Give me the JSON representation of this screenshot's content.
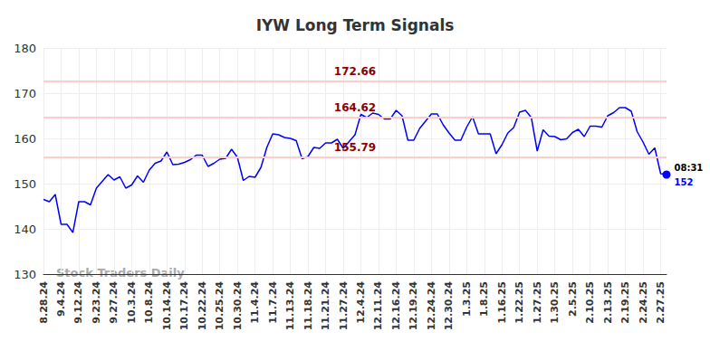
{
  "chart_data": {
    "type": "line",
    "title": "IYW Long Term Signals",
    "color": "#0000ff",
    "grid": true,
    "ylim": [
      130,
      180
    ],
    "yticks": [
      130,
      140,
      150,
      160,
      170,
      180
    ],
    "categories": [
      "8.28.24",
      null,
      null,
      "9.4.24",
      null,
      null,
      "9.12.24",
      null,
      null,
      "9.23.24",
      null,
      null,
      "9.27.24",
      null,
      null,
      "10.3.24",
      null,
      null,
      "10.8.24",
      null,
      null,
      "10.14.24",
      null,
      null,
      "10.17.24",
      null,
      null,
      "10.22.24",
      null,
      null,
      "10.25.24",
      null,
      null,
      "10.30.24",
      null,
      null,
      "11.4.24",
      null,
      null,
      "11.7.24",
      null,
      null,
      "11.13.24",
      null,
      null,
      "11.18.24",
      null,
      null,
      "11.21.24",
      null,
      null,
      "11.27.24",
      null,
      null,
      "12.4.24",
      null,
      null,
      "12.11.24",
      null,
      null,
      "12.16.24",
      null,
      null,
      "12.19.24",
      null,
      null,
      "12.24.24",
      null,
      null,
      "12.30.24",
      null,
      null,
      "1.3.25",
      null,
      null,
      "1.8.25",
      null,
      null,
      "1.16.25",
      null,
      null,
      "1.22.25",
      null,
      null,
      "1.27.25",
      null,
      null,
      "1.30.25",
      null,
      null,
      "2.5.25",
      null,
      null,
      "2.10.25",
      null,
      null,
      "2.13.25",
      null,
      null,
      "2.19.25",
      null,
      null,
      "2.24.25",
      null,
      null,
      "2.27.25",
      null
    ],
    "values": [
      146.5,
      146,
      147.6,
      141,
      141,
      139.2,
      146,
      146,
      145.3,
      149,
      150.5,
      152,
      150.8,
      151.5,
      149,
      149.7,
      151.7,
      150.3,
      153,
      154.5,
      155,
      157,
      154.2,
      154.3,
      154.7,
      155.3,
      156.3,
      156.3,
      153.8,
      154.5,
      155.4,
      155.6,
      157.6,
      155.8,
      150.7,
      151.6,
      151.4,
      153.6,
      158,
      161,
      160.8,
      160.2,
      160,
      159.5,
      155.5,
      156,
      158,
      157.8,
      159,
      159,
      159.8,
      157.8,
      159.3,
      160.8,
      165.3,
      164.6,
      165.6,
      165.3,
      164.3,
      164.3,
      166.2,
      165,
      159.6,
      159.6,
      162.2,
      163.8,
      165.4,
      165.4,
      163,
      161.2,
      159.6,
      159.6,
      162.5,
      164.8,
      161,
      161,
      161,
      156.6,
      158.6,
      161.2,
      162.4,
      165.8,
      166.2,
      164.6,
      157.2,
      161.9,
      160.5,
      160.4,
      159.7,
      159.9,
      161.3,
      162,
      160.4,
      162.7,
      162.7,
      162.5,
      165,
      165.7,
      166.8,
      166.8,
      166,
      161.5,
      159.2,
      156.5,
      157.9,
      152.2,
      152
    ],
    "annotations": {
      "levels": [
        172.66,
        164.62,
        155.79
      ],
      "last_time": "08:31",
      "watermark": "Stock Traders Daily"
    }
  }
}
